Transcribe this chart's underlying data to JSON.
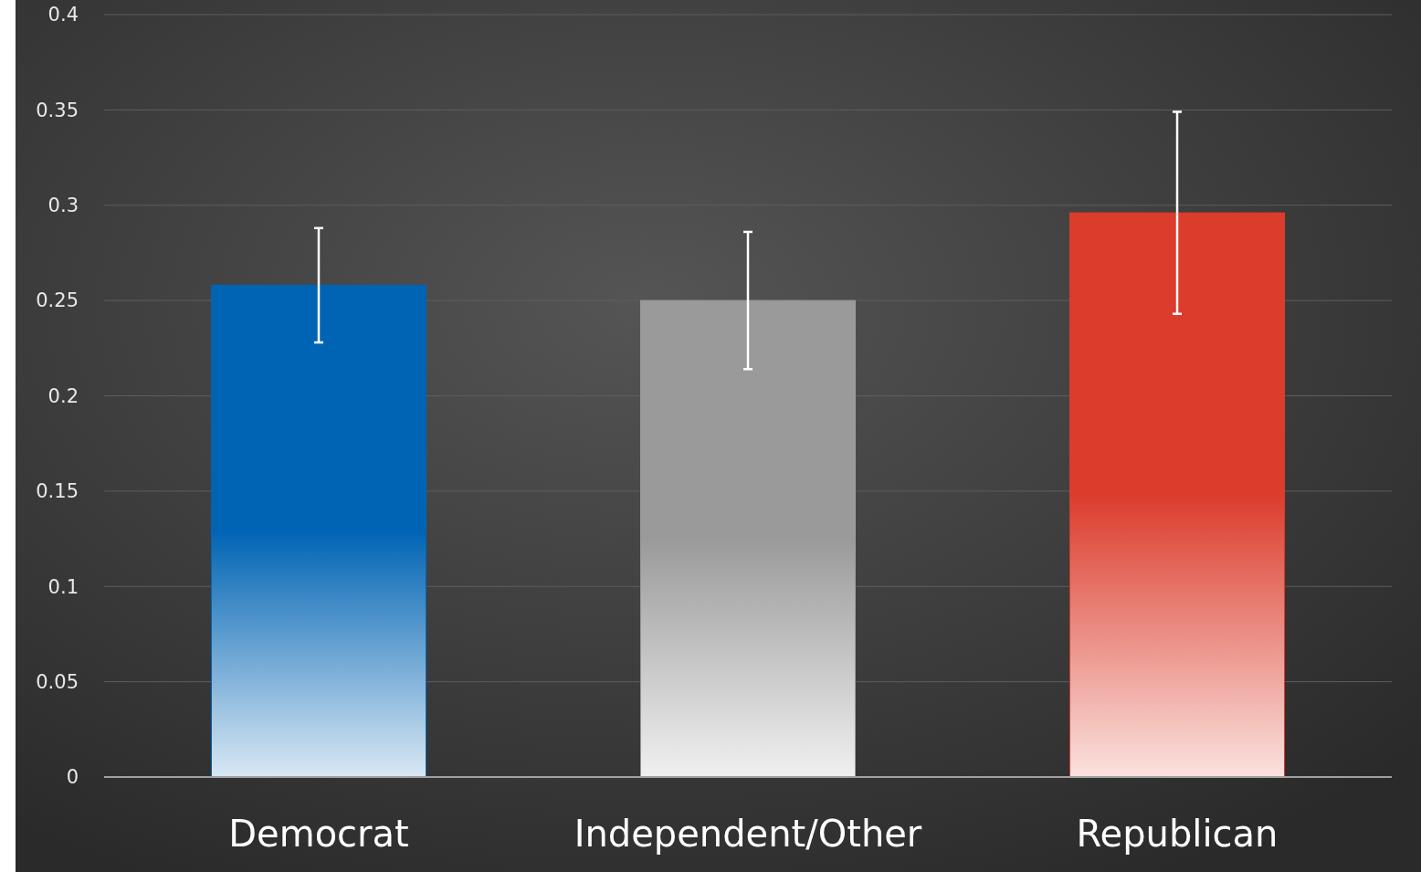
{
  "chart_data": {
    "type": "bar",
    "categories": [
      "Democrat",
      "Independent/Other",
      "Republican"
    ],
    "values": [
      0.258,
      0.25,
      0.296
    ],
    "colors": [
      "#0064b4",
      "#9a9a9a",
      "#dc3c2c"
    ],
    "errors": [
      0.03,
      0.036,
      0.053
    ],
    "ylim": [
      0,
      0.4
    ],
    "yticks": [
      0,
      0.05,
      0.1,
      0.15,
      0.2,
      0.25,
      0.3,
      0.35,
      0.4
    ],
    "grid": "y"
  }
}
